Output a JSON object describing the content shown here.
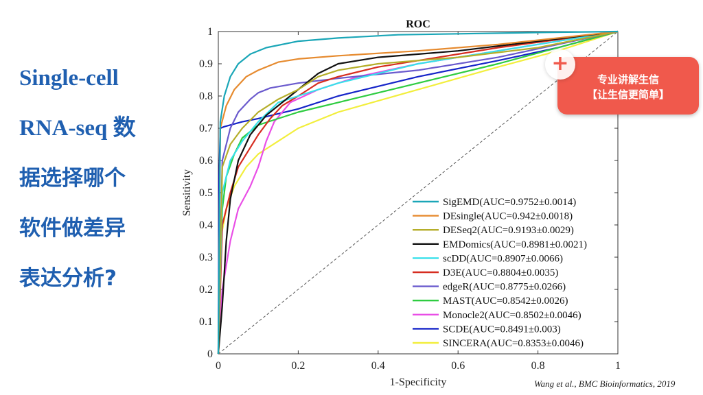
{
  "slide": {
    "title_lines": [
      "Single-cell",
      "RNA-seq 数",
      "据选择哪个",
      "软件做差异",
      "表达分析?"
    ],
    "citation": "Wang et al., BMC Bioinformatics, 2019"
  },
  "badge": {
    "plus": "+",
    "line1": "专业讲解生信",
    "line2": "【让生信更简单】",
    "color": "#f0594c"
  },
  "chart_data": {
    "type": "line",
    "title": "ROC",
    "xlabel": "1-Specificity",
    "ylabel": "Sensitivity",
    "xlim": [
      0,
      1
    ],
    "ylim": [
      0,
      1
    ],
    "x_ticks": [
      "0",
      "0.2",
      "0.4",
      "0.6",
      "0.8",
      "1"
    ],
    "y_ticks": [
      "0",
      "0.1",
      "0.2",
      "0.3",
      "0.4",
      "0.5",
      "0.6",
      "0.7",
      "0.8",
      "0.9",
      "1"
    ],
    "legend_position": "bottom-right",
    "diagonal": true,
    "series": [
      {
        "name": "SigEMD(AUC=0.9752±0.0014)",
        "color": "#1aa6b7",
        "x": [
          0,
          0.005,
          0.015,
          0.03,
          0.05,
          0.08,
          0.12,
          0.2,
          0.3,
          0.45,
          0.6,
          0.8,
          1
        ],
        "y": [
          0,
          0.72,
          0.8,
          0.86,
          0.9,
          0.93,
          0.95,
          0.97,
          0.98,
          0.99,
          0.993,
          0.997,
          1
        ]
      },
      {
        "name": "DEsingle(AUC=0.942±0.0018)",
        "color": "#e68a2e",
        "x": [
          0,
          0.005,
          0.02,
          0.04,
          0.07,
          0.1,
          0.15,
          0.2,
          0.3,
          0.5,
          0.7,
          1
        ],
        "y": [
          0,
          0.7,
          0.77,
          0.82,
          0.86,
          0.88,
          0.905,
          0.915,
          0.925,
          0.94,
          0.96,
          1
        ]
      },
      {
        "name": "DESeq2(AUC=0.9193±0.0029)",
        "color": "#b5ae2a",
        "x": [
          0,
          0.01,
          0.03,
          0.06,
          0.1,
          0.15,
          0.2,
          0.25,
          0.3,
          0.4,
          0.6,
          0.8,
          1
        ],
        "y": [
          0,
          0.58,
          0.65,
          0.7,
          0.75,
          0.79,
          0.82,
          0.86,
          0.88,
          0.9,
          0.92,
          0.95,
          1
        ]
      },
      {
        "name": "EMDomics(AUC=0.8981±0.0021)",
        "color": "#111111",
        "x": [
          0,
          0.01,
          0.02,
          0.03,
          0.05,
          0.08,
          0.12,
          0.16,
          0.2,
          0.25,
          0.3,
          0.4,
          0.6,
          0.8,
          1
        ],
        "y": [
          0,
          0.15,
          0.35,
          0.48,
          0.6,
          0.68,
          0.74,
          0.78,
          0.82,
          0.87,
          0.9,
          0.92,
          0.94,
          0.97,
          1
        ]
      },
      {
        "name": "scDD(AUC=0.8907±0.0066)",
        "color": "#37e0ea",
        "x": [
          0,
          0.01,
          0.03,
          0.06,
          0.1,
          0.15,
          0.2,
          0.3,
          0.4,
          0.5,
          0.7,
          0.85,
          1
        ],
        "y": [
          0,
          0.5,
          0.6,
          0.66,
          0.72,
          0.78,
          0.8,
          0.84,
          0.87,
          0.9,
          0.94,
          0.97,
          1
        ]
      },
      {
        "name": "D3E(AUC=0.8804±0.0035)",
        "color": "#d62d20",
        "x": [
          0,
          0.01,
          0.03,
          0.05,
          0.08,
          0.1,
          0.13,
          0.16,
          0.2,
          0.25,
          0.3,
          0.4,
          0.5,
          0.7,
          1
        ],
        "y": [
          0,
          0.4,
          0.5,
          0.58,
          0.64,
          0.68,
          0.73,
          0.77,
          0.8,
          0.84,
          0.86,
          0.89,
          0.91,
          0.95,
          1
        ]
      },
      {
        "name": "edgeR(AUC=0.8775±0.0266)",
        "color": "#6a5acd",
        "x": [
          0,
          0.01,
          0.03,
          0.05,
          0.08,
          0.1,
          0.13,
          0.2,
          0.3,
          0.5,
          0.7,
          0.85,
          1
        ],
        "y": [
          0,
          0.6,
          0.7,
          0.75,
          0.79,
          0.81,
          0.825,
          0.84,
          0.855,
          0.88,
          0.92,
          0.96,
          1
        ]
      },
      {
        "name": "MAST(AUC=0.8542±0.0026)",
        "color": "#2ecc40",
        "x": [
          0,
          0.01,
          0.02,
          0.04,
          0.06,
          0.1,
          0.2,
          0.3,
          0.5,
          0.7,
          0.85,
          1
        ],
        "y": [
          0,
          0.45,
          0.55,
          0.62,
          0.67,
          0.71,
          0.75,
          0.78,
          0.84,
          0.9,
          0.95,
          1
        ]
      },
      {
        "name": "Monocle2(AUC=0.8502±0.0046)",
        "color": "#e94ee6",
        "x": [
          0,
          0.01,
          0.03,
          0.05,
          0.08,
          0.1,
          0.12,
          0.14,
          0.18,
          0.25,
          0.35,
          0.5,
          0.7,
          0.85,
          1
        ],
        "y": [
          0,
          0.2,
          0.35,
          0.45,
          0.52,
          0.58,
          0.66,
          0.72,
          0.78,
          0.82,
          0.86,
          0.9,
          0.94,
          0.97,
          1
        ]
      },
      {
        "name": "SCDE(AUC=0.8491±0.003)",
        "color": "#1524c8",
        "x": [
          0,
          0.002,
          0.005,
          0.015,
          0.03,
          0.06,
          0.1,
          0.2,
          0.3,
          0.5,
          0.7,
          0.85,
          1
        ],
        "y": [
          0,
          0.55,
          0.7,
          0.705,
          0.71,
          0.72,
          0.73,
          0.76,
          0.8,
          0.86,
          0.91,
          0.95,
          1
        ]
      },
      {
        "name": "SINCERA(AUC=0.8353±0.0046)",
        "color": "#f2ee3c",
        "x": [
          0,
          0.005,
          0.02,
          0.04,
          0.07,
          0.1,
          0.15,
          0.2,
          0.3,
          0.5,
          0.7,
          0.85,
          1
        ],
        "y": [
          0,
          0.35,
          0.45,
          0.52,
          0.58,
          0.62,
          0.66,
          0.7,
          0.75,
          0.82,
          0.89,
          0.94,
          1
        ]
      }
    ]
  }
}
